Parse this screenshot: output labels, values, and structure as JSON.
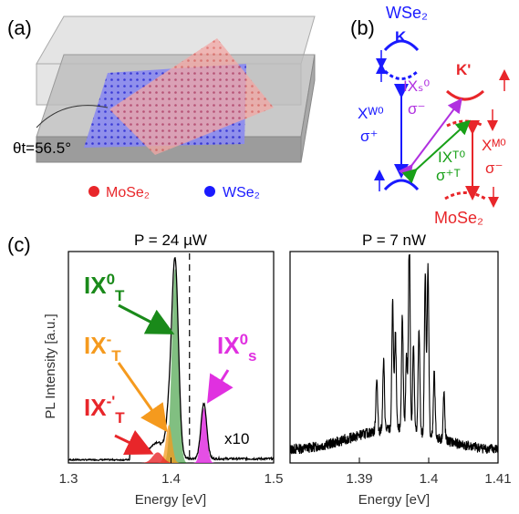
{
  "panel_a": {
    "label": "(a)",
    "angle_text": "θt=56.5°",
    "legend": [
      {
        "text": "MoSe₂",
        "color": "#e8262a"
      },
      {
        "text": "WSe₂",
        "color": "#1a1aff"
      }
    ]
  },
  "panel_b": {
    "label": "(b)",
    "title_top": "WSe₂",
    "valley_k": "K",
    "valley_kprime": "K'",
    "xw_label": "Xᵂ⁰",
    "xw_pol": "σ⁺",
    "ixs_label": "IXₛ⁰",
    "ixs_pol": "σ⁻",
    "ixt_label": "IXᵀ⁰",
    "ixt_pol": "σ⁺ᵀ",
    "xm_label": "Xᴹ⁰",
    "xm_pol": "σ⁻",
    "bottom_label": "MoSe₂",
    "colors": {
      "blue": "#1a1aff",
      "red": "#e8262a",
      "purple": "#b030e0",
      "green": "#18a018"
    }
  },
  "panel_c": {
    "label": "(c)",
    "ylabel": "PL Intensity [a.u.]",
    "chart_data": [
      {
        "type": "line",
        "title": "P = 24 µW",
        "xlabel": "Energy [eV]",
        "xlim": [
          1.3,
          1.5
        ],
        "xticks": [
          "1.3",
          "1.4",
          "1.5"
        ],
        "dashed_x": 1.418,
        "annotation_scale": "x10",
        "peaks": [
          {
            "label": "IX⁰T",
            "center": 1.404,
            "color": "#1a8a1a"
          },
          {
            "label": "IX⁻T",
            "center": 1.398,
            "color": "#f59a1e"
          },
          {
            "label": "IX⁻'T",
            "center": 1.387,
            "color": "#e8262a"
          },
          {
            "label": "IX⁰s",
            "center": 1.432,
            "color": "#e030e0"
          }
        ]
      },
      {
        "type": "line",
        "title": "P = 7 nW",
        "xlabel": "Energy [eV]",
        "xlim": [
          1.38,
          1.41
        ],
        "xticks": [
          "1.39",
          "1.4",
          "1.41"
        ],
        "lines": [
          1.3925,
          1.3935,
          1.3948,
          1.3952,
          1.3962,
          1.3968,
          1.3972,
          1.3978,
          1.3986,
          1.3995,
          1.3999,
          1.4008,
          1.4022
        ]
      }
    ]
  }
}
